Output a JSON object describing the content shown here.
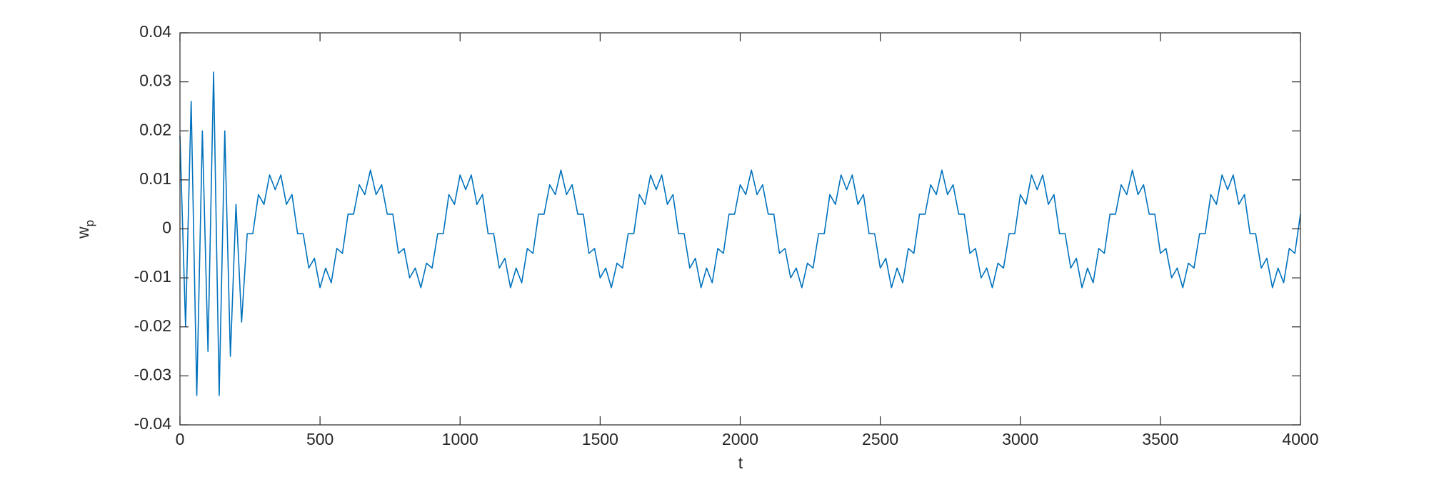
{
  "chart_data": {
    "type": "line",
    "xlabel": "t",
    "ylabel": {
      "base": "w",
      "sub": "p"
    },
    "color": "#0072bd",
    "xlim": [
      0,
      4000
    ],
    "xticks": [
      0,
      500,
      1000,
      1500,
      2000,
      2500,
      3000,
      3500,
      4000
    ],
    "ylim": [
      -0.04,
      0.04
    ],
    "yticks": [
      -0.04,
      -0.03,
      -0.02,
      -0.01,
      0,
      0.01,
      0.02,
      0.03,
      0.04
    ],
    "grid": false,
    "box": true,
    "x": [
      0,
      20,
      40,
      60,
      80,
      100,
      120,
      140,
      160,
      180,
      200,
      220,
      240,
      260,
      280,
      300,
      320,
      340,
      360,
      380,
      400,
      420,
      440,
      460,
      480,
      500,
      520,
      540,
      560,
      580,
      600,
      620,
      640,
      660,
      680,
      700,
      720,
      740,
      760,
      780,
      800,
      820,
      840,
      860,
      880,
      900,
      920,
      940,
      960,
      980,
      1000,
      1020,
      1040,
      1060,
      1080,
      1100,
      1120,
      1140,
      1160,
      1180,
      1200,
      1220,
      1240,
      1260,
      1280,
      1300,
      1320,
      1340,
      1360,
      1380,
      1400,
      1420,
      1440,
      1460,
      1480,
      1500,
      1520,
      1540,
      1560,
      1580,
      1600,
      1620,
      1640,
      1660,
      1680,
      1700,
      1720,
      1740,
      1760,
      1780,
      1800,
      1820,
      1840,
      1860,
      1880,
      1900,
      1920,
      1940,
      1960,
      1980,
      2000,
      2020,
      2040,
      2060,
      2080,
      2100,
      2120,
      2140,
      2160,
      2180,
      2200,
      2220,
      2240,
      2260,
      2280,
      2300,
      2320,
      2340,
      2360,
      2380,
      2400,
      2420,
      2440,
      2460,
      2480,
      2500,
      2520,
      2540,
      2560,
      2580,
      2600,
      2620,
      2640,
      2660,
      2680,
      2700,
      2720,
      2740,
      2760,
      2780,
      2800,
      2820,
      2840,
      2860,
      2880,
      2900,
      2920,
      2940,
      2960,
      2980,
      3000,
      3020,
      3040,
      3060,
      3080,
      3100,
      3120,
      3140,
      3160,
      3180,
      3200,
      3220,
      3240,
      3260,
      3280,
      3300,
      3320,
      3340,
      3360,
      3380,
      3400,
      3420,
      3440,
      3460,
      3480,
      3500,
      3520,
      3540,
      3560,
      3580,
      3600,
      3620,
      3640,
      3660,
      3680,
      3700,
      3720,
      3740,
      3760,
      3780,
      3800,
      3820,
      3840,
      3860,
      3880,
      3900,
      3920,
      3940,
      3960,
      3980,
      4000
    ],
    "values": [
      0.019,
      -0.02,
      0.026,
      -0.034,
      0.02,
      -0.025,
      0.032,
      -0.034,
      0.02,
      -0.026,
      0.005,
      -0.019,
      -0.001,
      -0.001,
      0.007,
      0.005,
      0.011,
      0.008,
      0.011,
      0.005,
      0.007,
      -0.001,
      -0.001,
      -0.008,
      -0.006,
      -0.012,
      -0.008,
      -0.011,
      -0.004,
      -0.005,
      0.003,
      0.003,
      0.009,
      0.007,
      0.012,
      0.007,
      0.009,
      0.003,
      0.003,
      -0.005,
      -0.004,
      -0.01,
      -0.008,
      -0.012,
      -0.007,
      -0.008,
      -0.001,
      -0.001,
      0.007,
      0.005,
      0.011,
      0.008,
      0.011,
      0.005,
      0.007,
      -0.001,
      -0.001,
      -0.008,
      -0.006,
      -0.012,
      -0.008,
      -0.011,
      -0.004,
      -0.005,
      0.003,
      0.003,
      0.009,
      0.007,
      0.012,
      0.007,
      0.009,
      0.003,
      0.003,
      -0.005,
      -0.004,
      -0.01,
      -0.008,
      -0.012,
      -0.007,
      -0.008,
      -0.001,
      -0.001,
      0.007,
      0.005,
      0.011,
      0.008,
      0.011,
      0.005,
      0.007,
      -0.001,
      -0.001,
      -0.008,
      -0.006,
      -0.012,
      -0.008,
      -0.011,
      -0.004,
      -0.005,
      0.003,
      0.003,
      0.009,
      0.007,
      0.012,
      0.007,
      0.009,
      0.003,
      0.003,
      -0.005,
      -0.004,
      -0.01,
      -0.008,
      -0.012,
      -0.007,
      -0.008,
      -0.001,
      -0.001,
      0.007,
      0.005,
      0.011,
      0.008,
      0.011,
      0.005,
      0.007,
      -0.001,
      -0.001,
      -0.008,
      -0.006,
      -0.012,
      -0.008,
      -0.011,
      -0.004,
      -0.005,
      0.003,
      0.003,
      0.009,
      0.007,
      0.012,
      0.007,
      0.009,
      0.003,
      0.003,
      -0.005,
      -0.004,
      -0.01,
      -0.008,
      -0.012,
      -0.007,
      -0.008,
      -0.001,
      -0.001,
      0.007,
      0.005,
      0.011,
      0.008,
      0.011,
      0.005,
      0.007,
      -0.001,
      -0.001,
      -0.008,
      -0.006,
      -0.012,
      -0.008,
      -0.011,
      -0.004,
      -0.005,
      0.003,
      0.003,
      0.009,
      0.007,
      0.012,
      0.007,
      0.009,
      0.003,
      0.003,
      -0.005,
      -0.004,
      -0.01,
      -0.008,
      -0.012,
      -0.007,
      -0.008,
      -0.001,
      -0.001,
      0.007,
      0.005,
      0.011,
      0.008,
      0.011,
      0.005,
      0.007,
      -0.001,
      -0.001,
      -0.008,
      -0.006,
      -0.012,
      -0.008,
      -0.011,
      -0.004,
      -0.005,
      0.003
    ]
  }
}
